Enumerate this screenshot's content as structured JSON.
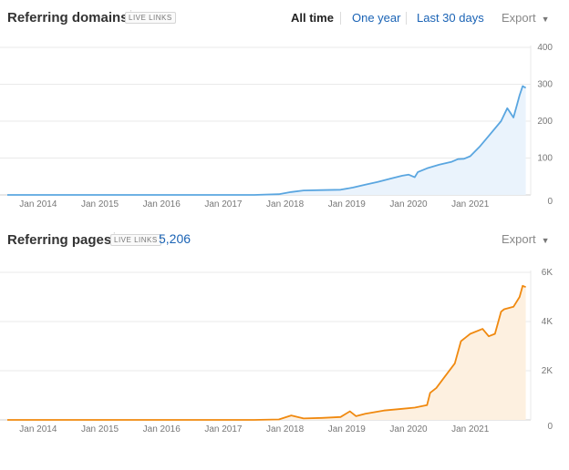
{
  "top_panel": {
    "title": "Referring domains",
    "info_mark": "i",
    "badge": "LIVE LINKS",
    "ranges": [
      "All time",
      "One year",
      "Last 30 days"
    ],
    "export_label": "Export",
    "colors": {
      "line": "#5aa6e0",
      "fill": "#eaf3fc"
    }
  },
  "bottom_panel": {
    "title": "Referring pages",
    "info_mark": "i",
    "badge": "LIVE LINKS",
    "count": "5,206",
    "export_label": "Export",
    "colors": {
      "line": "#f0890f",
      "fill": "#fdf0e0"
    }
  },
  "chart_data": [
    {
      "type": "area",
      "x_tick_labels": [
        "Jan 2014",
        "Jan 2015",
        "Jan 2016",
        "Jan 2017",
        "Jan 2018",
        "Jan 2019",
        "Jan 2020",
        "Jan 2021"
      ],
      "y_tick_labels": [
        "0",
        "100",
        "200",
        "300",
        "400"
      ],
      "ylim": [
        0,
        400
      ],
      "xlim": [
        2013.5,
        2021.95
      ],
      "grid": true,
      "series": [
        {
          "x": [
            2013.5,
            2017.5,
            2017.9,
            2018.1,
            2018.3,
            2018.6,
            2018.9,
            2019.1,
            2019.3,
            2019.5,
            2019.7,
            2019.9,
            2020.0,
            2020.1,
            2020.15,
            2020.3,
            2020.5,
            2020.7,
            2020.8,
            2020.9,
            2021.0,
            2021.15,
            2021.3,
            2021.5,
            2021.6,
            2021.7,
            2021.75,
            2021.8,
            2021.85,
            2021.9
          ],
          "y": [
            0,
            0,
            2,
            8,
            12,
            13,
            14,
            20,
            28,
            35,
            44,
            52,
            55,
            48,
            62,
            72,
            82,
            90,
            97,
            98,
            105,
            130,
            160,
            200,
            235,
            210,
            240,
            270,
            295,
            290
          ]
        }
      ]
    },
    {
      "type": "area",
      "x_tick_labels": [
        "Jan 2014",
        "Jan 2015",
        "Jan 2016",
        "Jan 2017",
        "Jan 2018",
        "Jan 2019",
        "Jan 2020",
        "Jan 2021"
      ],
      "y_tick_labels": [
        "0",
        "2K",
        "4K",
        "6K"
      ],
      "ylim": [
        0,
        6000
      ],
      "xlim": [
        2013.5,
        2021.95
      ],
      "grid": true,
      "series": [
        {
          "x": [
            2013.5,
            2017.5,
            2017.9,
            2018.1,
            2018.3,
            2018.6,
            2018.9,
            2019.05,
            2019.15,
            2019.3,
            2019.6,
            2019.9,
            2020.1,
            2020.3,
            2020.35,
            2020.45,
            2020.6,
            2020.75,
            2020.85,
            2020.95,
            2021.0,
            2021.2,
            2021.3,
            2021.4,
            2021.5,
            2021.55,
            2021.7,
            2021.8,
            2021.85,
            2021.9
          ],
          "y": [
            0,
            0,
            20,
            180,
            60,
            80,
            120,
            350,
            150,
            250,
            380,
            450,
            500,
            600,
            1100,
            1300,
            1800,
            2300,
            3200,
            3400,
            3500,
            3700,
            3400,
            3500,
            4400,
            4500,
            4600,
            5000,
            5450,
            5400
          ]
        }
      ]
    }
  ]
}
